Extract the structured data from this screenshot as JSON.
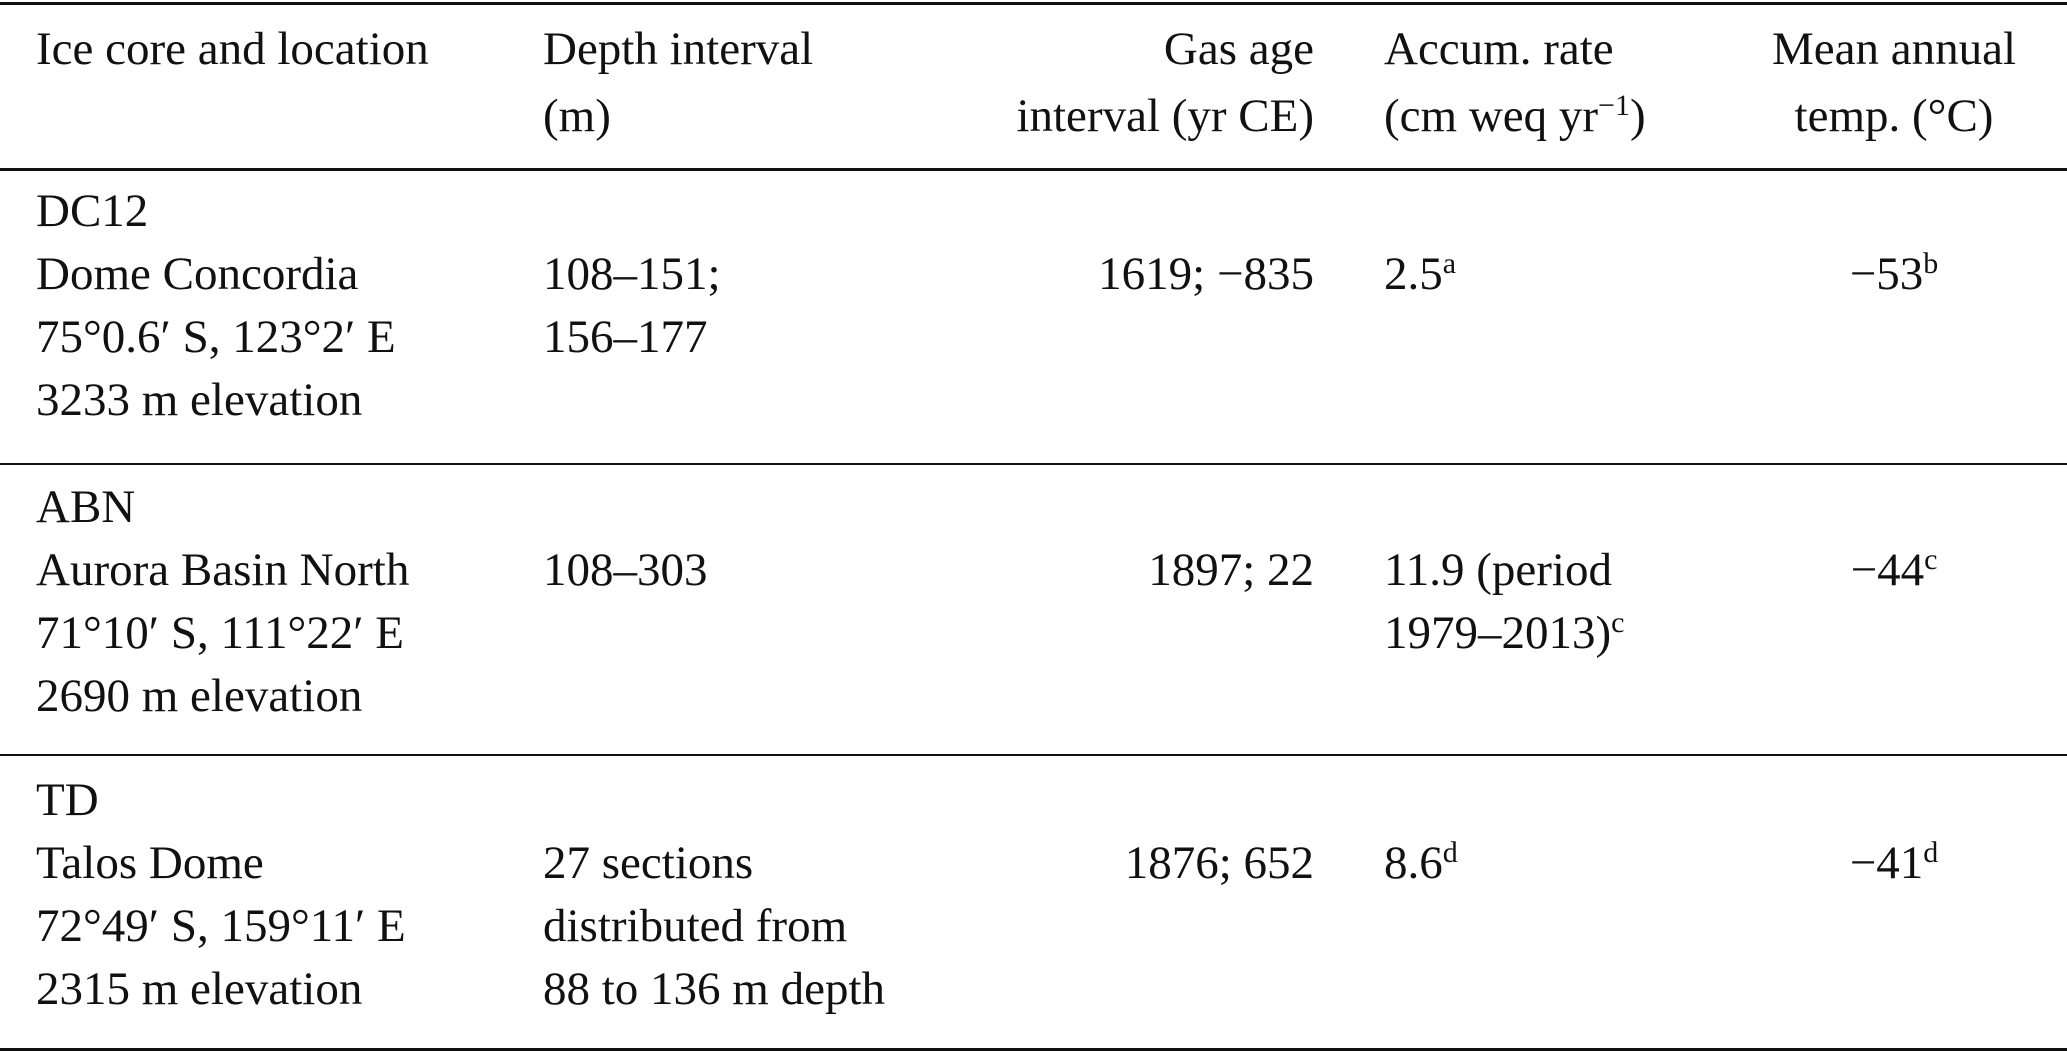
{
  "table": {
    "header": [
      [
        "Ice core and location"
      ],
      [
        "Depth interval",
        "(m)"
      ],
      [
        "Gas age",
        "interval (yr CE)"
      ],
      [
        "Accum. rate",
        {
          "text": "(cm weq yr",
          "sup": "−1",
          "after": ")"
        }
      ],
      [
        "Mean annual",
        "temp. (°C)"
      ]
    ],
    "rows": [
      [
        [
          "DC12",
          "Dome Concordia",
          "75°0.6′ S, 123°2′ E",
          "3233 m elevation"
        ],
        [
          "108–151;",
          "156–177"
        ],
        [
          "1619; −835"
        ],
        [
          {
            "text": "2.5",
            "sup": "a"
          }
        ],
        [
          {
            "text": "−53",
            "sup": "b"
          }
        ]
      ],
      [
        [
          "ABN",
          "Aurora Basin North",
          "71°10′ S, 111°22′ E",
          "2690 m elevation"
        ],
        [
          "108–303"
        ],
        [
          "1897; 22"
        ],
        [
          "11.9 (period",
          {
            "text": "1979–2013)",
            "sup": "c"
          }
        ],
        [
          {
            "text": "−44",
            "sup": "c"
          }
        ]
      ],
      [
        [
          "TD",
          "Talos Dome",
          "72°49′ S, 159°11′ E",
          "2315 m elevation"
        ],
        [
          "27 sections",
          "distributed from",
          "88 to 136 m depth"
        ],
        [
          "1876; 652"
        ],
        [
          {
            "text": "8.6",
            "sup": "d"
          }
        ],
        [
          {
            "text": "−41",
            "sup": "d"
          }
        ]
      ]
    ]
  }
}
